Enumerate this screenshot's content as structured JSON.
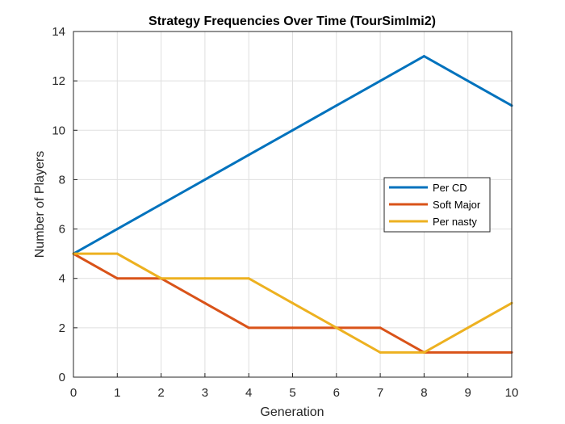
{
  "chart_data": {
    "type": "line",
    "title": "Strategy Frequencies Over Time (TourSimImi2)",
    "xlabel": "Generation",
    "ylabel": "Number of Players",
    "xlim": [
      0,
      10
    ],
    "ylim": [
      0,
      14
    ],
    "xticks": [
      0,
      1,
      2,
      3,
      4,
      5,
      6,
      7,
      8,
      9,
      10
    ],
    "yticks": [
      0,
      2,
      4,
      6,
      8,
      10,
      12,
      14
    ],
    "grid": true,
    "legend_position": "center-right",
    "x": [
      0,
      1,
      2,
      3,
      4,
      5,
      6,
      7,
      8,
      9,
      10
    ],
    "series": [
      {
        "name": "Per CD",
        "color": "#0072BD",
        "values": [
          5,
          6,
          7,
          8,
          9,
          10,
          11,
          12,
          13,
          12,
          11
        ]
      },
      {
        "name": "Soft Major",
        "color": "#D95319",
        "values": [
          5,
          4,
          4,
          3,
          2,
          2,
          2,
          2,
          1,
          1,
          1
        ]
      },
      {
        "name": "Per nasty",
        "color": "#EDB120",
        "values": [
          5,
          5,
          4,
          4,
          4,
          3,
          2,
          1,
          1,
          2,
          3
        ]
      }
    ]
  }
}
